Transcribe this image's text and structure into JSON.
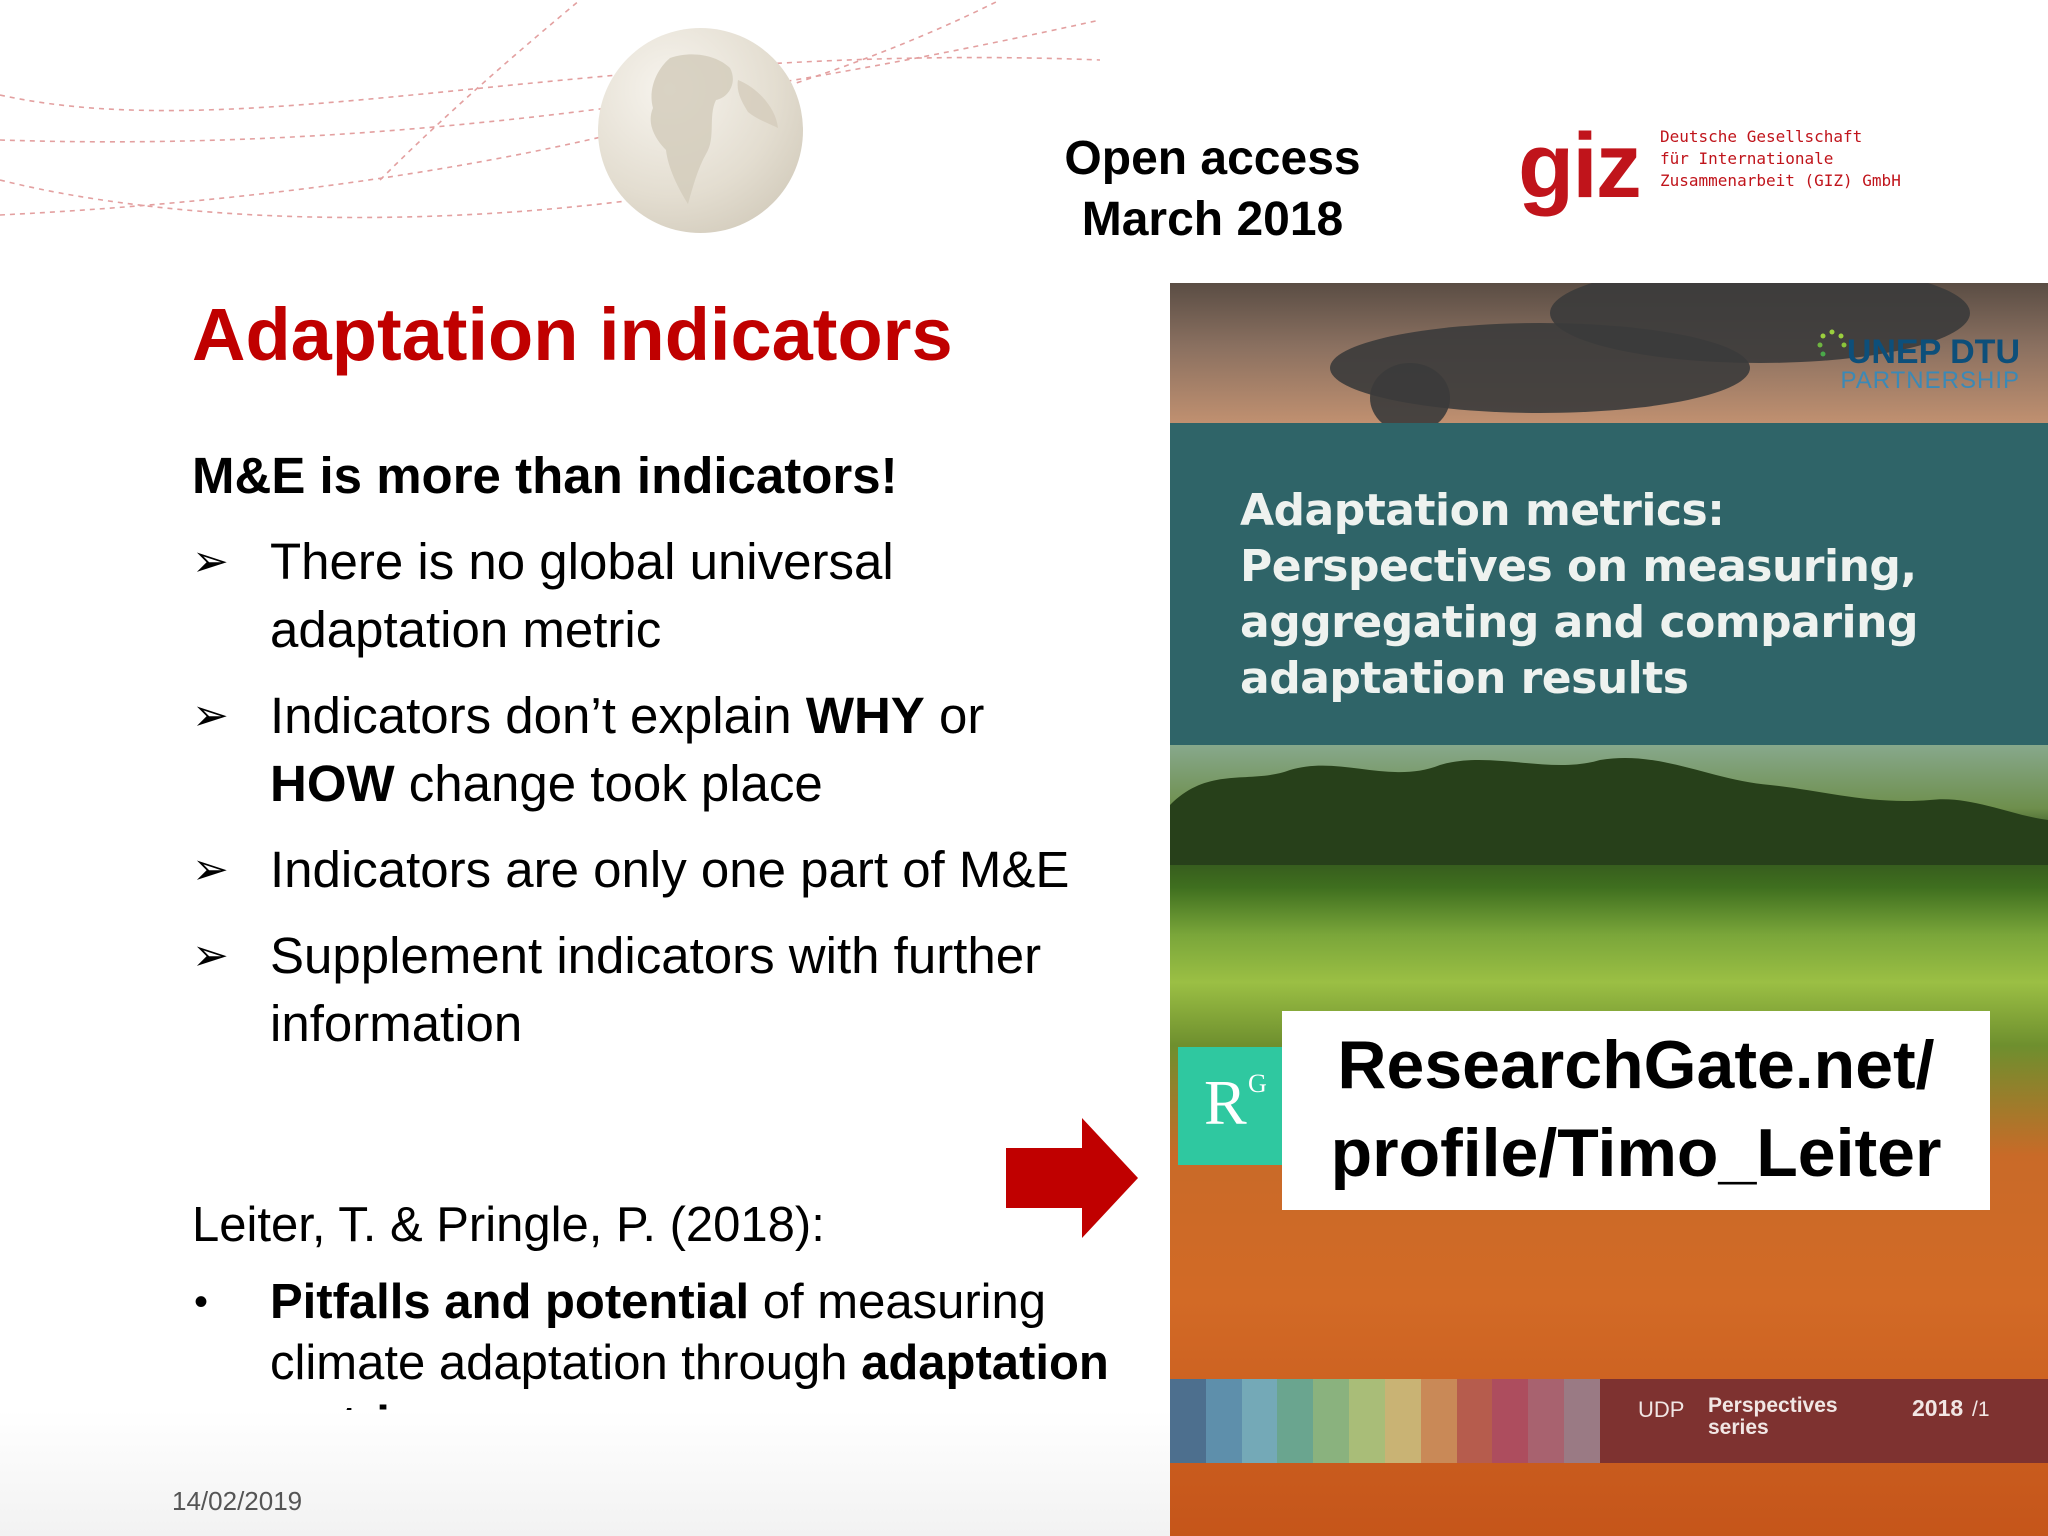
{
  "header": {
    "open_access_line1": "Open access",
    "open_access_line2": "March 2018",
    "giz_mark": "giz",
    "giz_text_line1": "Deutsche Gesellschaft",
    "giz_text_line2": "für Internationale",
    "giz_text_line3": "Zusammenarbeit (GIZ) GmbH"
  },
  "title": "Adaptation indicators",
  "subhead": "M&E is more than indicators!",
  "bullets": [
    {
      "pre": "There is no global universal adaptation metric"
    },
    {
      "pre": "Indicators don’t explain ",
      "b1": "WHY",
      "mid": " or ",
      "b2": "HOW",
      "post": " change took place"
    },
    {
      "pre": "Indicators are only one part of M&E"
    },
    {
      "pre": "Supplement indicators with further information"
    }
  ],
  "reference": {
    "citation": "Leiter, T. & Pringle, P. (2018):",
    "item_bold1": "Pitfalls and potential",
    "item_mid": " of measuring climate adaptation through ",
    "item_bold2": "adaptation metrics",
    "item_end": "."
  },
  "footer": {
    "date": "14/02/2019"
  },
  "cover": {
    "unep_main": "UNEP DTU",
    "unep_sub": "PARTNERSHIP",
    "panel_title_lines": [
      "Adaptation metrics:",
      "Perspectives on measuring,",
      "aggregating and comparing",
      "adaptation results"
    ],
    "url_line1": "ResearchGate.net/",
    "url_line2": "profile/Timo_Leiter",
    "rg_r": "R",
    "rg_g": "G",
    "series_udp": "UDP",
    "series_persp": "Perspectives\nseries",
    "series_year": "2018",
    "series_num": "/1",
    "swatch_colors": [
      "#4d6f8e",
      "#5e8fab",
      "#74a9b7",
      "#6aa58f",
      "#8ab27e",
      "#a9bd78",
      "#c9b374",
      "#c98957",
      "#b65c4d",
      "#ad4d5e",
      "#a8626f",
      "#9a7a84"
    ]
  },
  "colors": {
    "accent_red": "#c00000",
    "giz_red": "#c0141b",
    "teal_panel": "#2f6468",
    "rg_green": "#2fc8a0"
  }
}
